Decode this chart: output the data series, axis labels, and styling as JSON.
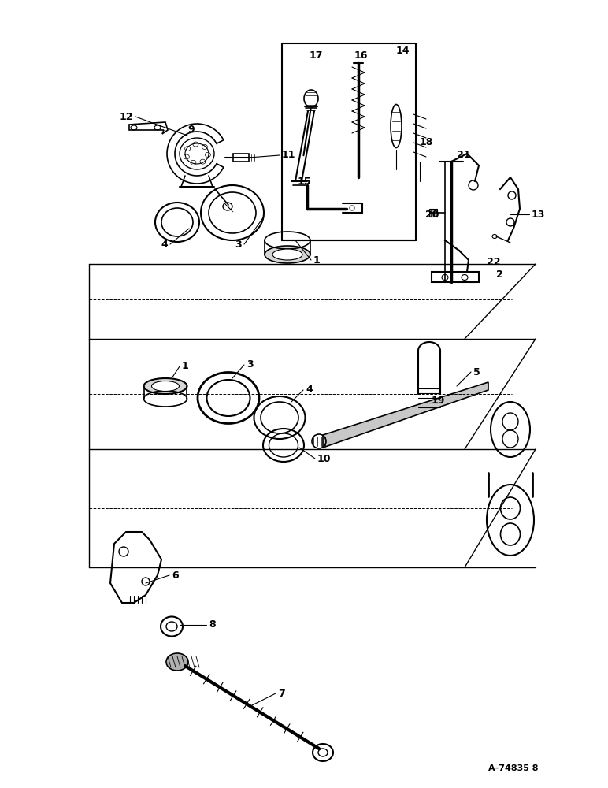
{
  "bg_color": "#ffffff",
  "line_color": "#000000",
  "fig_width": 7.72,
  "fig_height": 10.0,
  "dpi": 100,
  "watermark": "A-74835 8"
}
